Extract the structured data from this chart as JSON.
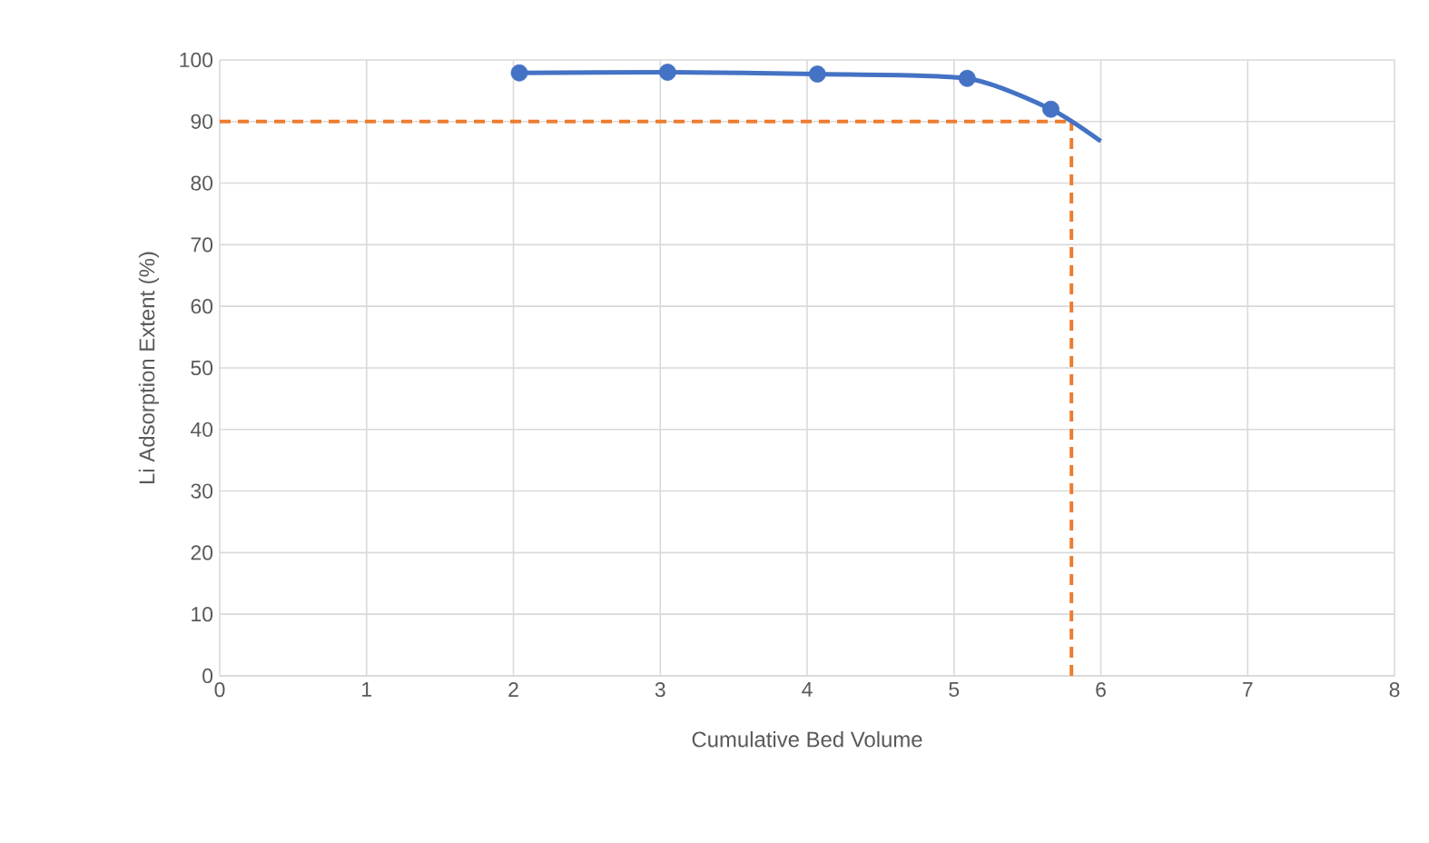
{
  "chart_data": {
    "type": "line",
    "xlabel": "Cumulative Bed Volume",
    "ylabel": "Li Adsorption Extent (%)",
    "xlim": [
      0,
      8
    ],
    "ylim": [
      0,
      100
    ],
    "xticks": [
      0,
      1,
      2,
      3,
      4,
      5,
      6,
      7,
      8
    ],
    "yticks": [
      0,
      10,
      20,
      30,
      40,
      50,
      60,
      70,
      80,
      90,
      100
    ],
    "grid": true,
    "series": [
      {
        "x": [
          2.04,
          3.05,
          4.07,
          5.09,
          5.66,
          6.0
        ],
        "values": [
          97.9,
          98.0,
          97.7,
          97.0,
          92.0,
          86.8
        ],
        "color": "#4472c4",
        "marker": "none",
        "line_style": "solid"
      },
      {
        "type": "scatter",
        "x": [
          2.04,
          3.05,
          4.07,
          5.09,
          5.66
        ],
        "values": [
          97.9,
          98.0,
          97.7,
          97.0,
          92.0
        ],
        "color": "#4472c4",
        "marker": "circle"
      }
    ],
    "ref_lines": [
      {
        "axis": "y",
        "value": 90,
        "color": "#ed7d31",
        "line_style": "dashed"
      },
      {
        "axis": "x",
        "value": 5.8,
        "color": "#ed7d31",
        "line_style": "dashed"
      }
    ]
  }
}
